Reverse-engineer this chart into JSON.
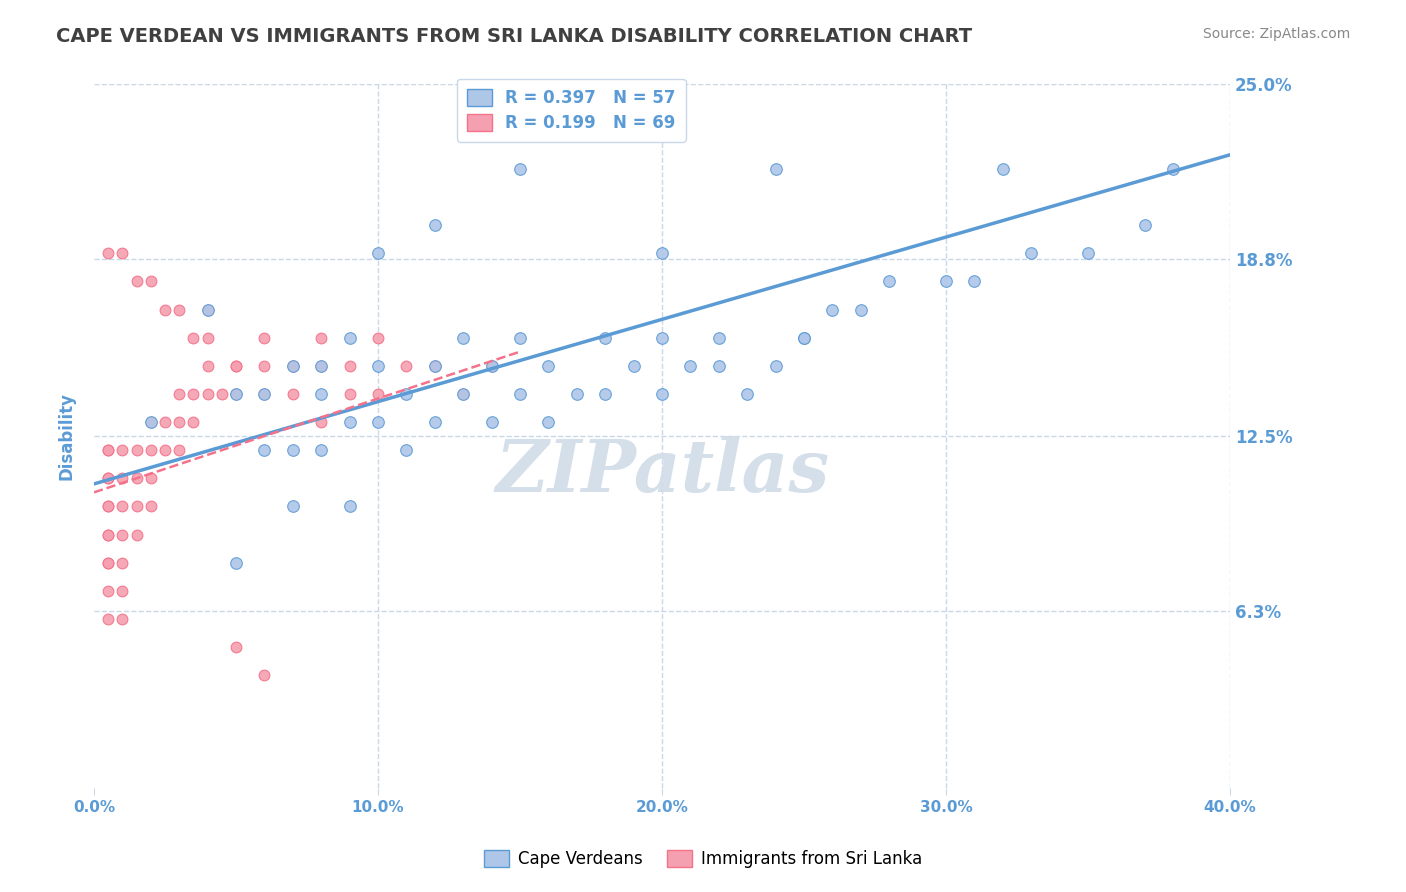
{
  "title": "CAPE VERDEAN VS IMMIGRANTS FROM SRI LANKA DISABILITY CORRELATION CHART",
  "source": "Source: ZipAtlas.com",
  "xlabel_bottom": "",
  "ylabel": "Disability",
  "x_min": 0.0,
  "x_max": 0.4,
  "y_min": 0.0,
  "y_max": 0.25,
  "x_ticks": [
    0.0,
    0.1,
    0.2,
    0.3,
    0.4
  ],
  "x_tick_labels": [
    "0.0%",
    "10.0%",
    "20.0%",
    "30.0%",
    "40.0%"
  ],
  "y_ticks": [
    0.063,
    0.125,
    0.188,
    0.25
  ],
  "y_tick_labels": [
    "6.3%",
    "12.5%",
    "18.8%",
    "25.0%"
  ],
  "legend_entries": [
    {
      "label": "R = 0.397   N = 57",
      "color": "#aec6e8"
    },
    {
      "label": "R = 0.199   N = 69",
      "color": "#f4b8c1"
    }
  ],
  "blue_color": "#5b9bd5",
  "pink_color": "#f4728a",
  "blue_dot_color": "#aec6e8",
  "pink_dot_color": "#f4a0b0",
  "title_color": "#404040",
  "axis_label_color": "#5b9bd5",
  "tick_label_color": "#5b9bd5",
  "grid_color": "#c8d8e8",
  "watermark_color": "#d0dce8",
  "blue_scatter_x": [
    0.02,
    0.04,
    0.05,
    0.05,
    0.06,
    0.06,
    0.07,
    0.07,
    0.07,
    0.08,
    0.08,
    0.08,
    0.09,
    0.09,
    0.09,
    0.1,
    0.1,
    0.11,
    0.11,
    0.12,
    0.12,
    0.13,
    0.13,
    0.14,
    0.14,
    0.15,
    0.15,
    0.16,
    0.16,
    0.17,
    0.18,
    0.18,
    0.19,
    0.2,
    0.2,
    0.21,
    0.22,
    0.22,
    0.23,
    0.24,
    0.25,
    0.26,
    0.27,
    0.28,
    0.3,
    0.31,
    0.33,
    0.35,
    0.37,
    0.24,
    0.1,
    0.12,
    0.15,
    0.2,
    0.25,
    0.32,
    0.38
  ],
  "blue_scatter_y": [
    0.13,
    0.17,
    0.14,
    0.08,
    0.14,
    0.12,
    0.15,
    0.12,
    0.1,
    0.15,
    0.14,
    0.12,
    0.16,
    0.13,
    0.1,
    0.15,
    0.13,
    0.14,
    0.12,
    0.15,
    0.13,
    0.14,
    0.16,
    0.15,
    0.13,
    0.16,
    0.14,
    0.15,
    0.13,
    0.14,
    0.16,
    0.14,
    0.15,
    0.16,
    0.14,
    0.15,
    0.16,
    0.15,
    0.14,
    0.15,
    0.16,
    0.17,
    0.17,
    0.18,
    0.18,
    0.18,
    0.19,
    0.19,
    0.2,
    0.22,
    0.19,
    0.2,
    0.22,
    0.19,
    0.16,
    0.22,
    0.22
  ],
  "pink_scatter_x": [
    0.005,
    0.005,
    0.005,
    0.005,
    0.005,
    0.005,
    0.005,
    0.005,
    0.005,
    0.005,
    0.005,
    0.005,
    0.01,
    0.01,
    0.01,
    0.01,
    0.01,
    0.01,
    0.01,
    0.015,
    0.015,
    0.015,
    0.015,
    0.02,
    0.02,
    0.02,
    0.02,
    0.025,
    0.025,
    0.03,
    0.03,
    0.03,
    0.035,
    0.035,
    0.04,
    0.04,
    0.045,
    0.05,
    0.05,
    0.06,
    0.06,
    0.07,
    0.07,
    0.08,
    0.08,
    0.09,
    0.09,
    0.1,
    0.11,
    0.12,
    0.13,
    0.14,
    0.04,
    0.05,
    0.06,
    0.07,
    0.08,
    0.1,
    0.12,
    0.005,
    0.01,
    0.015,
    0.02,
    0.025,
    0.03,
    0.035,
    0.04,
    0.05,
    0.06
  ],
  "pink_scatter_y": [
    0.12,
    0.12,
    0.11,
    0.11,
    0.1,
    0.1,
    0.09,
    0.09,
    0.08,
    0.08,
    0.07,
    0.06,
    0.12,
    0.11,
    0.1,
    0.09,
    0.08,
    0.07,
    0.06,
    0.12,
    0.11,
    0.1,
    0.09,
    0.13,
    0.12,
    0.11,
    0.1,
    0.13,
    0.12,
    0.14,
    0.13,
    0.12,
    0.14,
    0.13,
    0.15,
    0.14,
    0.14,
    0.15,
    0.14,
    0.15,
    0.14,
    0.15,
    0.14,
    0.15,
    0.13,
    0.15,
    0.14,
    0.14,
    0.15,
    0.15,
    0.14,
    0.15,
    0.16,
    0.15,
    0.16,
    0.15,
    0.16,
    0.16,
    0.15,
    0.19,
    0.19,
    0.18,
    0.18,
    0.17,
    0.17,
    0.16,
    0.17,
    0.05,
    0.04
  ],
  "blue_line_x": [
    0.0,
    0.4
  ],
  "blue_line_y_start": 0.108,
  "blue_line_y_end": 0.225,
  "pink_line_x": [
    0.0,
    0.15
  ],
  "pink_line_y_start": 0.105,
  "pink_line_y_end": 0.155
}
